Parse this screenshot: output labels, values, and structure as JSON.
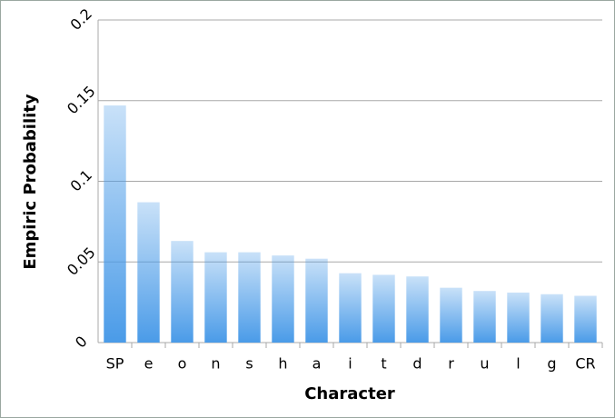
{
  "chart_data": {
    "type": "bar",
    "categories": [
      "SP",
      "e",
      "o",
      "n",
      "s",
      "h",
      "a",
      "i",
      "t",
      "d",
      "r",
      "u",
      "l",
      "g",
      "CR"
    ],
    "values": [
      0.147,
      0.087,
      0.063,
      0.056,
      0.056,
      0.054,
      0.052,
      0.043,
      0.042,
      0.041,
      0.034,
      0.032,
      0.031,
      0.03,
      0.029
    ],
    "color": "#4a9be8",
    "x_label": "Character",
    "y_label": "Empiric Probability",
    "ylim": [
      0,
      0.2
    ],
    "yticks": [
      0,
      0.05,
      0.1,
      0.15,
      0.2
    ],
    "grid": true
  }
}
